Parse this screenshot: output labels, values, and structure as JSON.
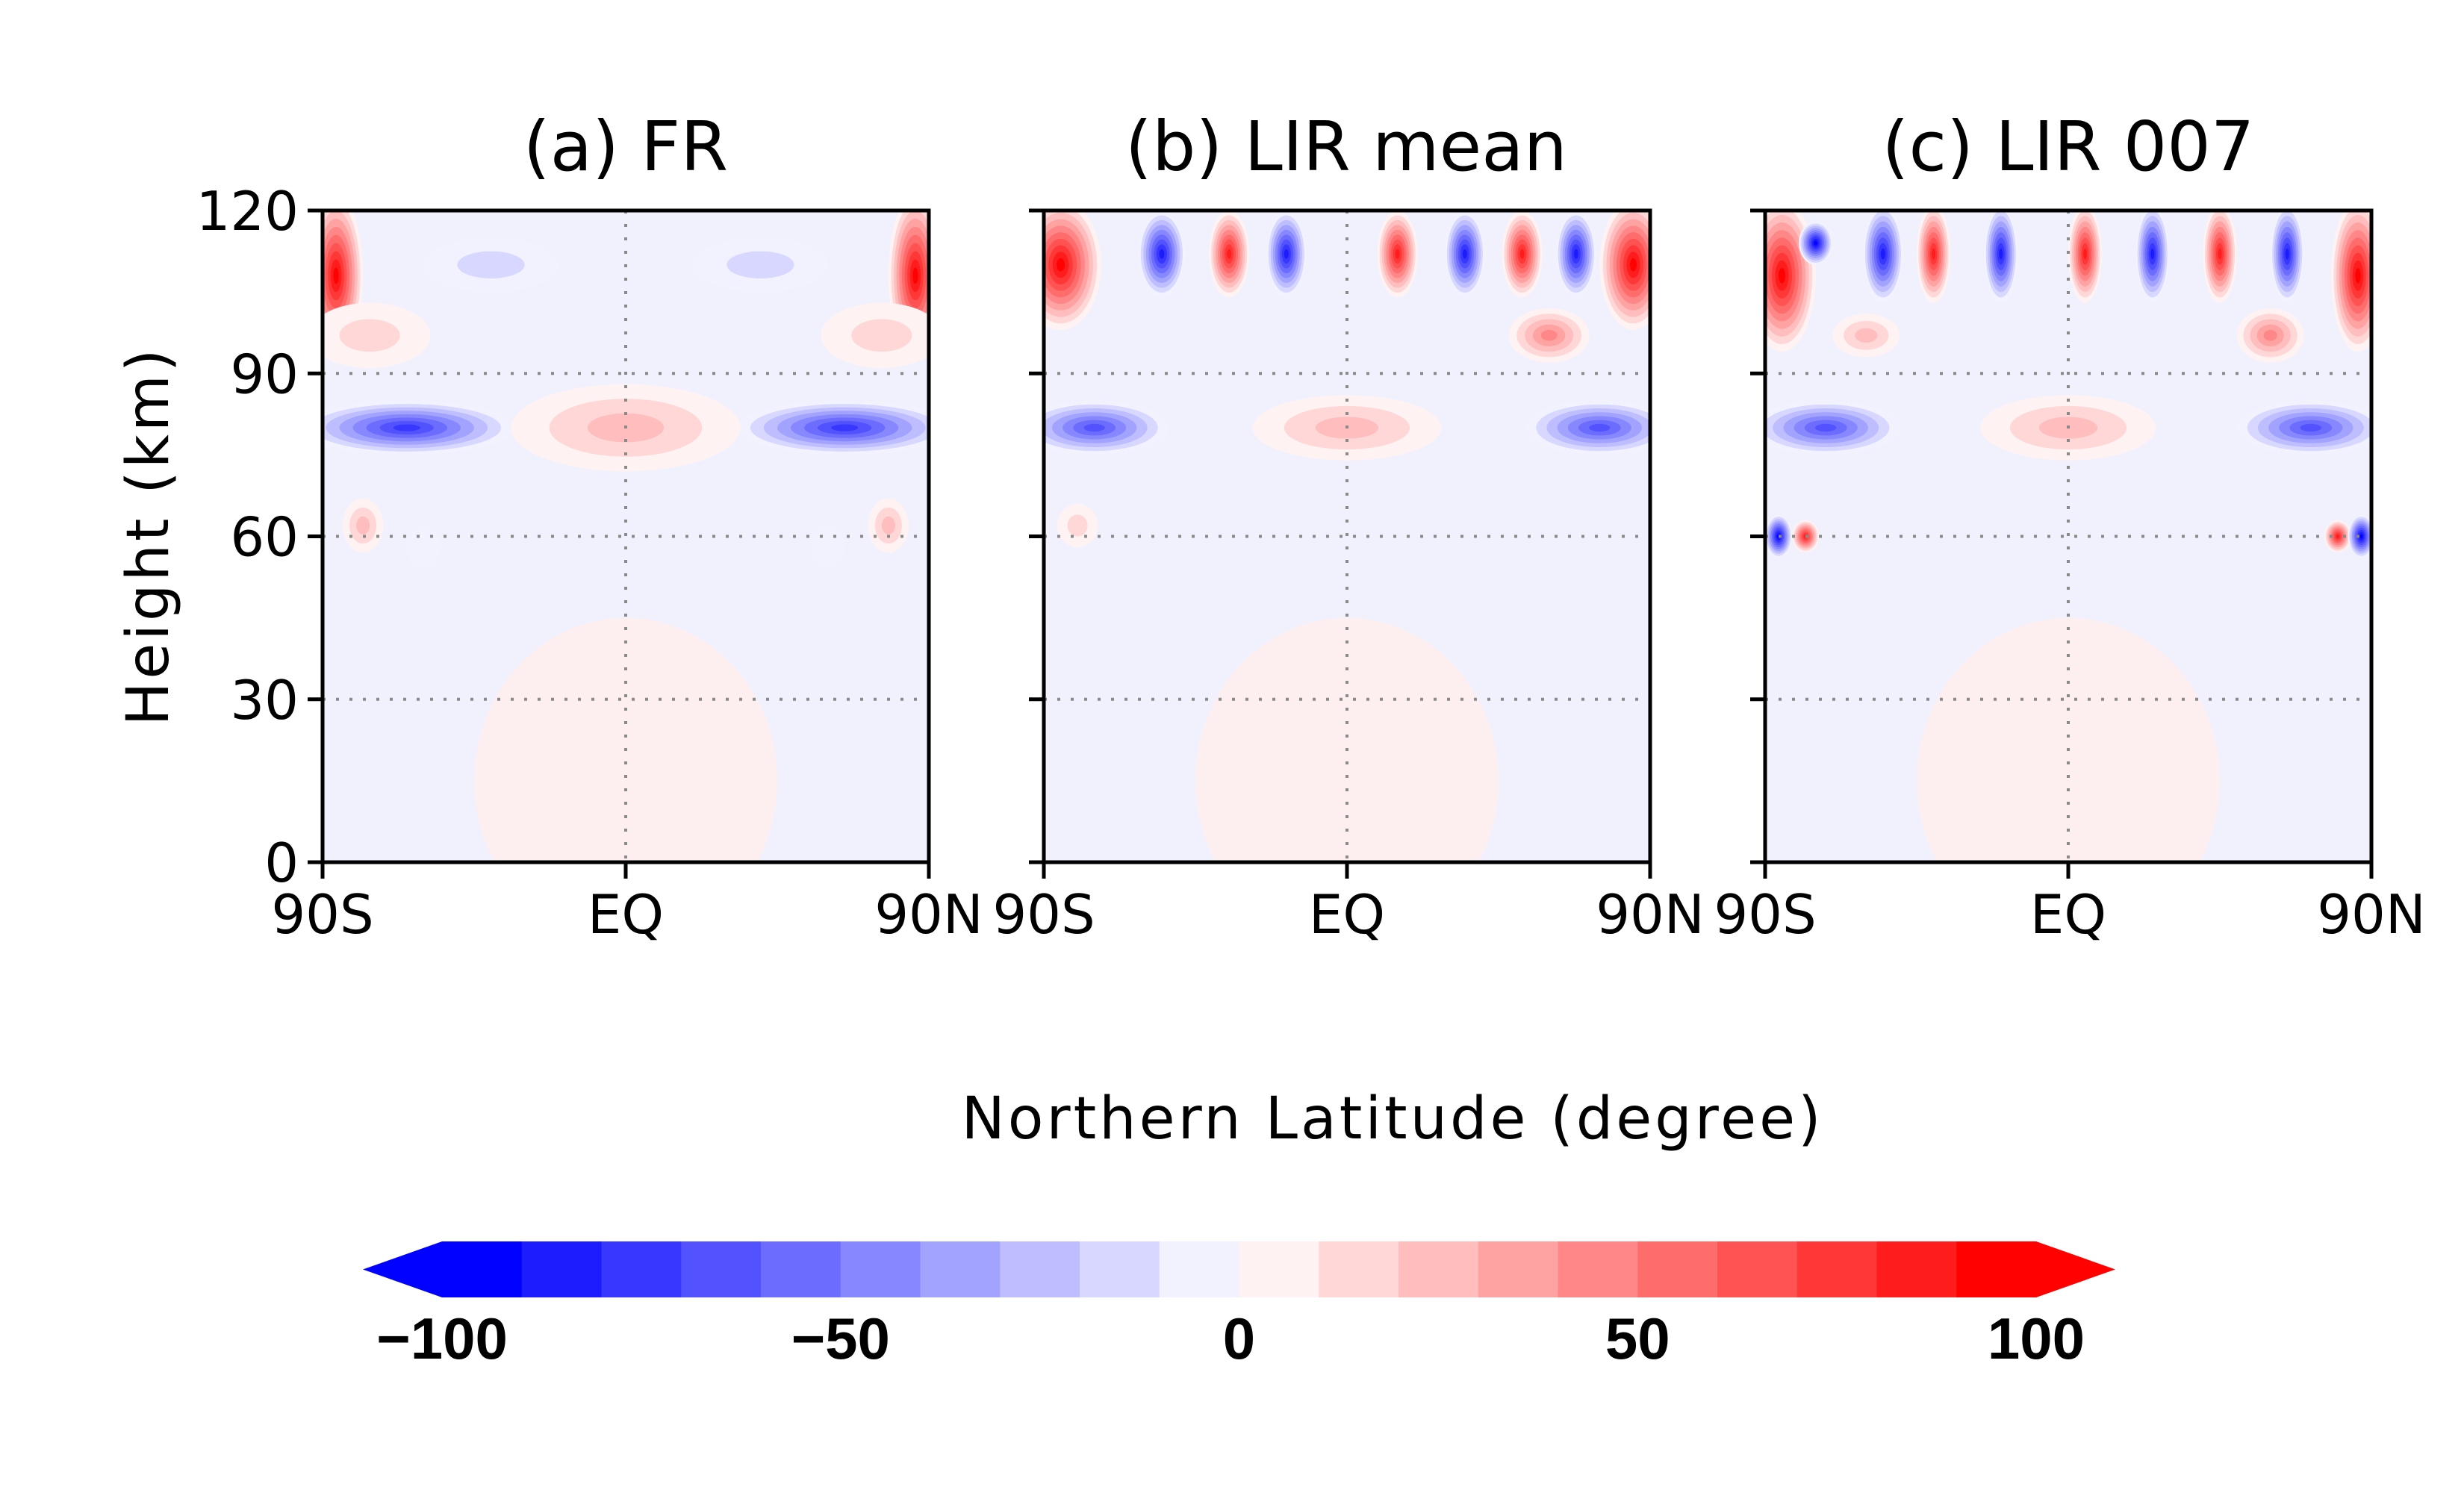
{
  "chart_data": {
    "type": "heatmap",
    "xlabel": "Northern Latitude (degree)",
    "ylabel": "Height (km)",
    "x_ticks": [
      "90S",
      "EQ",
      "90N"
    ],
    "y_ticks": [
      0,
      30,
      60,
      90,
      120
    ],
    "xlim": [
      -90,
      90
    ],
    "ylim": [
      0,
      120
    ],
    "grid": {
      "dotted_lines_at_height": [
        30,
        60,
        90
      ],
      "dotted_line_at_latitude": [
        0
      ]
    },
    "colorbar": {
      "min": -100,
      "max": 100,
      "step": 10,
      "tick_values": [
        -100,
        -50,
        0,
        50,
        100
      ],
      "tick_labels": [
        "−100",
        "−50",
        "0",
        "50",
        "100"
      ],
      "extend": "both",
      "negative_color": "#0000ff",
      "positive_color": "#ff0000"
    },
    "panels": [
      {
        "title": "(a) FR",
        "features": [
          {
            "lat": -65,
            "height": 80,
            "value": -85,
            "w": 32,
            "h": 5
          },
          {
            "lat": 65,
            "height": 80,
            "value": -85,
            "w": 32,
            "h": 5
          },
          {
            "lat": 0,
            "height": 80,
            "value": 35,
            "w": 34,
            "h": 8
          },
          {
            "lat": -86,
            "height": 108,
            "value": 100,
            "w": 8,
            "h": 15
          },
          {
            "lat": 86,
            "height": 108,
            "value": 100,
            "w": 8,
            "h": 15
          },
          {
            "lat": -76,
            "height": 97,
            "value": 25,
            "w": 18,
            "h": 6
          },
          {
            "lat": 76,
            "height": 97,
            "value": 25,
            "w": 18,
            "h": 6
          },
          {
            "lat": -40,
            "height": 110,
            "value": -20,
            "w": 20,
            "h": 5
          },
          {
            "lat": 40,
            "height": 110,
            "value": -20,
            "w": 20,
            "h": 5
          },
          {
            "lat": -78,
            "height": 62,
            "value": 35,
            "w": 6,
            "h": 5
          },
          {
            "lat": 78,
            "height": 62,
            "value": 35,
            "w": 6,
            "h": 5
          },
          {
            "lat": -60,
            "height": 58,
            "value": -15,
            "w": 5,
            "h": 4
          },
          {
            "lat": 60,
            "height": 58,
            "value": -15,
            "w": 5,
            "h": 4
          }
        ]
      },
      {
        "title": "(b) LIR mean",
        "features": [
          {
            "lat": -75,
            "height": 80,
            "value": -75,
            "w": 22,
            "h": 5
          },
          {
            "lat": 75,
            "height": 80,
            "value": -75,
            "w": 22,
            "h": 5
          },
          {
            "lat": 0,
            "height": 80,
            "value": 30,
            "w": 28,
            "h": 6
          },
          {
            "lat": -85,
            "height": 110,
            "value": 100,
            "w": 12,
            "h": 12
          },
          {
            "lat": 85,
            "height": 110,
            "value": 100,
            "w": 10,
            "h": 12
          },
          {
            "lat": -55,
            "height": 112,
            "value": -90,
            "w": 7,
            "h": 8
          },
          {
            "lat": -35,
            "height": 112,
            "value": 95,
            "w": 6,
            "h": 8
          },
          {
            "lat": -18,
            "height": 112,
            "value": -90,
            "w": 6,
            "h": 8
          },
          {
            "lat": 15,
            "height": 112,
            "value": 90,
            "w": 6,
            "h": 8
          },
          {
            "lat": 35,
            "height": 112,
            "value": -90,
            "w": 6,
            "h": 8
          },
          {
            "lat": 52,
            "height": 112,
            "value": 95,
            "w": 6,
            "h": 8
          },
          {
            "lat": 68,
            "height": 112,
            "value": -90,
            "w": 6,
            "h": 8
          },
          {
            "lat": 60,
            "height": 97,
            "value": 50,
            "w": 12,
            "h": 5
          },
          {
            "lat": -80,
            "height": 62,
            "value": 25,
            "w": 6,
            "h": 4
          }
        ]
      },
      {
        "title": "(c) LIR 007",
        "features": [
          {
            "lat": -72,
            "height": 80,
            "value": -70,
            "w": 22,
            "h": 5
          },
          {
            "lat": 72,
            "height": 80,
            "value": -70,
            "w": 22,
            "h": 5
          },
          {
            "lat": 0,
            "height": 80,
            "value": 30,
            "w": 26,
            "h": 6
          },
          {
            "lat": -85,
            "height": 108,
            "value": 100,
            "w": 10,
            "h": 14
          },
          {
            "lat": 86,
            "height": 108,
            "value": 100,
            "w": 8,
            "h": 14
          },
          {
            "lat": -75,
            "height": 114,
            "value": -100,
            "w": 5,
            "h": 4
          },
          {
            "lat": -55,
            "height": 112,
            "value": -95,
            "w": 6,
            "h": 9
          },
          {
            "lat": -40,
            "height": 112,
            "value": 95,
            "w": 5,
            "h": 9
          },
          {
            "lat": -20,
            "height": 112,
            "value": -90,
            "w": 5,
            "h": 9
          },
          {
            "lat": 5,
            "height": 112,
            "value": 90,
            "w": 5,
            "h": 9
          },
          {
            "lat": 25,
            "height": 112,
            "value": -90,
            "w": 5,
            "h": 9
          },
          {
            "lat": 45,
            "height": 112,
            "value": 95,
            "w": 5,
            "h": 9
          },
          {
            "lat": 65,
            "height": 112,
            "value": -90,
            "w": 5,
            "h": 9
          },
          {
            "lat": -86,
            "height": 60,
            "value": -100,
            "w": 4,
            "h": 4
          },
          {
            "lat": -78,
            "height": 60,
            "value": 90,
            "w": 4,
            "h": 3
          },
          {
            "lat": 80,
            "height": 60,
            "value": 90,
            "w": 4,
            "h": 3
          },
          {
            "lat": 87,
            "height": 60,
            "value": -100,
            "w": 4,
            "h": 4
          },
          {
            "lat": 60,
            "height": 97,
            "value": 50,
            "w": 10,
            "h": 5
          },
          {
            "lat": -60,
            "height": 97,
            "value": 35,
            "w": 10,
            "h": 4
          }
        ]
      }
    ]
  }
}
